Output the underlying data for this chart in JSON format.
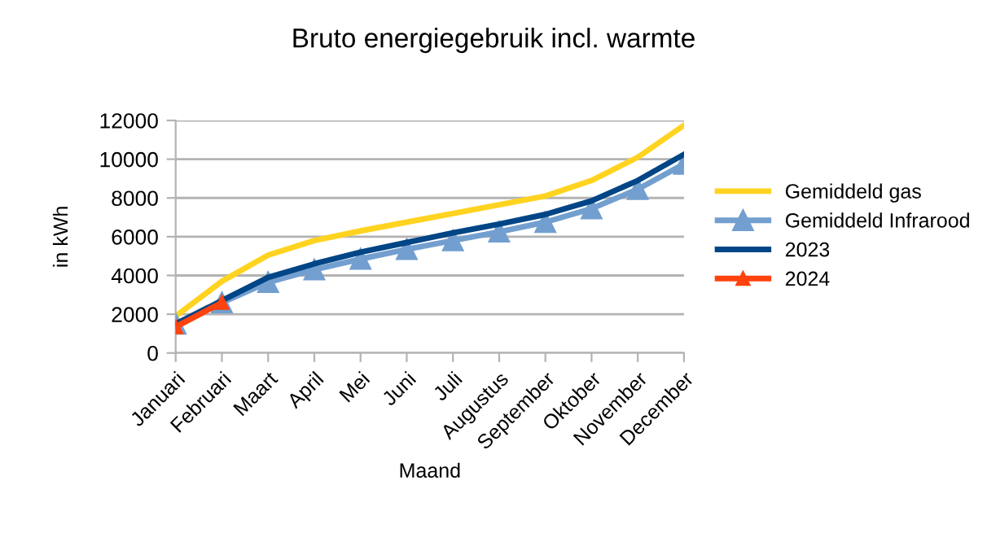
{
  "chart_data": {
    "type": "line",
    "title": "Bruto energiegebruik incl. warmte",
    "xlabel": "Maand",
    "ylabel": "in kWh",
    "categories": [
      "Januari",
      "Februari",
      "Maart",
      "April",
      "Mei",
      "Juni",
      "Juli",
      "Augustus",
      "September",
      "Oktober",
      "November",
      "December"
    ],
    "series": [
      {
        "name": "Gemiddeld gas",
        "color": "#ffd320",
        "marker": "none",
        "values": [
          1900,
          3700,
          5050,
          5800,
          6300,
          6750,
          7200,
          7650,
          8100,
          8900,
          10100,
          11750
        ]
      },
      {
        "name": "Gemiddeld Infrarood",
        "color": "#729fcf",
        "marker": "triangle",
        "values": [
          1500,
          2600,
          3650,
          4300,
          4850,
          5350,
          5800,
          6250,
          6750,
          7450,
          8450,
          9750
        ]
      },
      {
        "name": "2023",
        "color": "#004586",
        "marker": "none",
        "values": [
          1500,
          2700,
          3900,
          4600,
          5200,
          5700,
          6200,
          6650,
          7150,
          7850,
          8900,
          10250
        ]
      },
      {
        "name": "2024",
        "color": "#ff420e",
        "marker": "triangle",
        "values": [
          1350,
          2600,
          null,
          null,
          null,
          null,
          null,
          null,
          null,
          null,
          null,
          null
        ]
      }
    ],
    "ylim": [
      0,
      12000
    ],
    "yticks": [
      0,
      2000,
      4000,
      6000,
      8000,
      10000,
      12000
    ],
    "grid": "y",
    "legend": "right",
    "line_style": "solid"
  }
}
